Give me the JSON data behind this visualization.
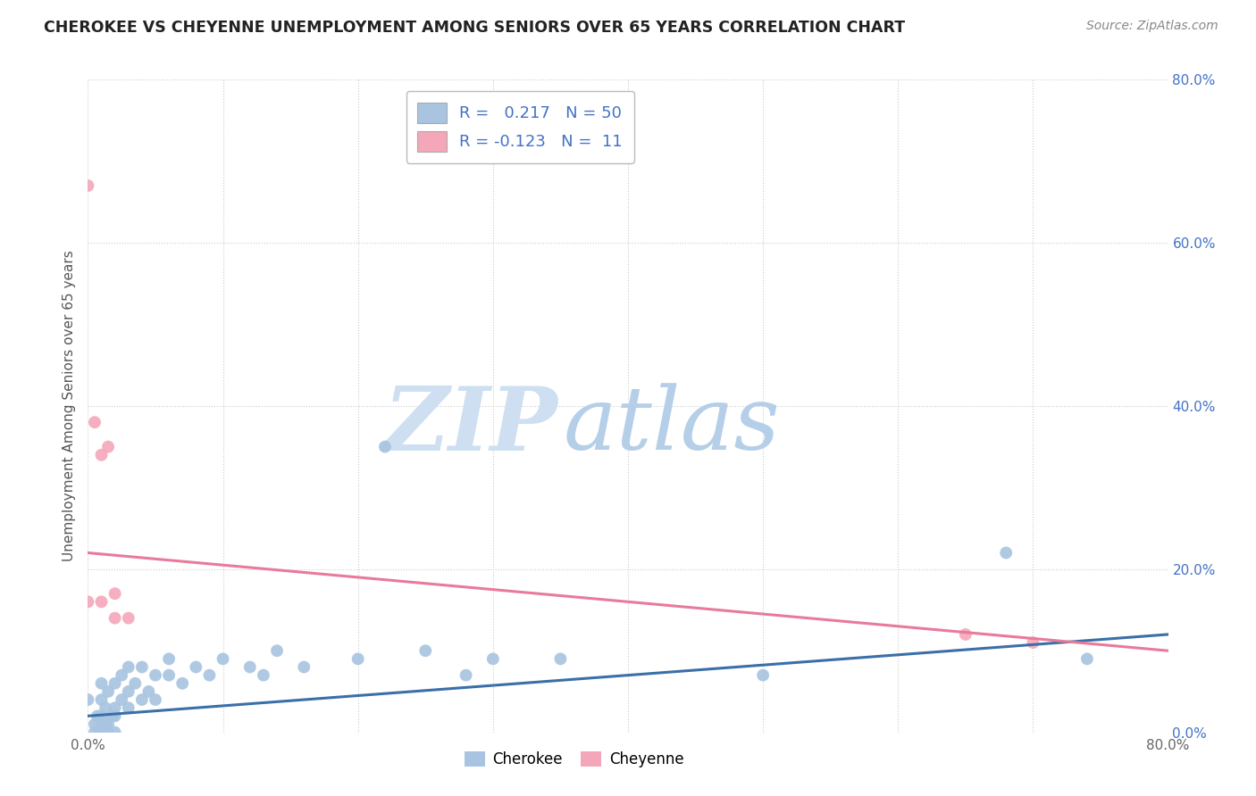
{
  "title": "CHEROKEE VS CHEYENNE UNEMPLOYMENT AMONG SENIORS OVER 65 YEARS CORRELATION CHART",
  "source": "Source: ZipAtlas.com",
  "ylabel": "Unemployment Among Seniors over 65 years",
  "xlabel": "",
  "xlim": [
    0.0,
    0.8
  ],
  "ylim": [
    0.0,
    0.8
  ],
  "legend_label1": "Cherokee",
  "legend_label2": "Cheyenne",
  "R1": 0.217,
  "N1": 50,
  "R2": -0.123,
  "N2": 11,
  "cherokee_color": "#a8c4e0",
  "cheyenne_color": "#f4a7b9",
  "cherokee_line_color": "#3a6fa8",
  "cheyenne_line_color": "#e87a9a",
  "background_color": "#ffffff",
  "grid_color": "#cccccc",
  "watermark_zip_color": "#cddff0",
  "watermark_atlas_color": "#b5cfe8",
  "cherokee_x": [
    0.0,
    0.005,
    0.005,
    0.007,
    0.008,
    0.01,
    0.01,
    0.01,
    0.01,
    0.01,
    0.013,
    0.013,
    0.015,
    0.015,
    0.015,
    0.018,
    0.02,
    0.02,
    0.02,
    0.02,
    0.025,
    0.025,
    0.03,
    0.03,
    0.03,
    0.035,
    0.04,
    0.04,
    0.045,
    0.05,
    0.05,
    0.06,
    0.06,
    0.07,
    0.08,
    0.09,
    0.1,
    0.12,
    0.13,
    0.14,
    0.16,
    0.2,
    0.22,
    0.25,
    0.28,
    0.3,
    0.35,
    0.5,
    0.68,
    0.74
  ],
  "cherokee_y": [
    0.04,
    0.0,
    0.01,
    0.02,
    0.0,
    0.0,
    0.01,
    0.02,
    0.04,
    0.06,
    0.01,
    0.03,
    0.0,
    0.01,
    0.05,
    0.02,
    0.0,
    0.02,
    0.03,
    0.06,
    0.04,
    0.07,
    0.03,
    0.05,
    0.08,
    0.06,
    0.04,
    0.08,
    0.05,
    0.04,
    0.07,
    0.07,
    0.09,
    0.06,
    0.08,
    0.07,
    0.09,
    0.08,
    0.07,
    0.1,
    0.08,
    0.09,
    0.35,
    0.1,
    0.07,
    0.09,
    0.09,
    0.07,
    0.22,
    0.09
  ],
  "cheyenne_x": [
    0.0,
    0.0,
    0.005,
    0.01,
    0.01,
    0.015,
    0.02,
    0.02,
    0.03,
    0.65,
    0.7
  ],
  "cheyenne_y": [
    0.67,
    0.16,
    0.38,
    0.34,
    0.16,
    0.35,
    0.14,
    0.17,
    0.14,
    0.12,
    0.11
  ],
  "cherokee_trendline": [
    0.02,
    0.12
  ],
  "cheyenne_trendline": [
    0.22,
    0.1
  ],
  "yticks_right": [
    0.0,
    0.2,
    0.4,
    0.6,
    0.8
  ],
  "ytick_labels_right": [
    "0.0%",
    "20.0%",
    "40.0%",
    "60.0%",
    "80.0%"
  ]
}
